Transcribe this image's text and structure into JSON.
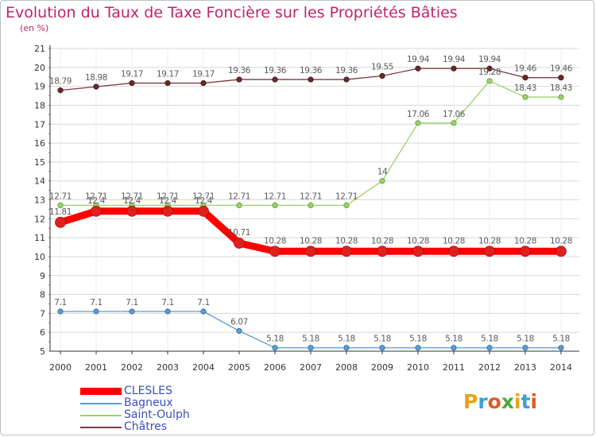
{
  "header": {
    "title": "Evolution du Taux de Taxe Foncière sur les Propriétés Bâties",
    "subtitle": "(en %)"
  },
  "colors": {
    "title": "#c0246a",
    "legend_text": "#3a4fb8",
    "grid": "#d8d8d8",
    "axis_label": "#333333",
    "value_label": "#5a5a5a"
  },
  "logo": {
    "letters": [
      "P",
      "r",
      "o",
      "x",
      "i",
      "t",
      "i"
    ],
    "colors": [
      "#e8a21d",
      "#3d9fd6",
      "#e05a2a",
      "#4aa83c",
      "#e8a21d",
      "#3d9fd6",
      "#e05a2a"
    ]
  },
  "chart_data": {
    "type": "line",
    "title": "Evolution du Taux de Taxe Foncière sur les Propriétés Bâties",
    "ylabel": "(en %)",
    "xlabel": "",
    "ylim": [
      5,
      21
    ],
    "yticks": [
      "5",
      "6",
      "7",
      "8",
      "9",
      "10",
      "11",
      "12",
      "13",
      "14",
      "15",
      "16",
      "17",
      "18",
      "19",
      "20",
      "21"
    ],
    "categories": [
      "2000",
      "2001",
      "2002",
      "2003",
      "2004",
      "2005",
      "2006",
      "2007",
      "2008",
      "2009",
      "2010",
      "2011",
      "2012",
      "2013",
      "2014"
    ],
    "grid": true,
    "legend_position": "bottom-left",
    "series": [
      {
        "name": "CLESLES",
        "color": "#ff0000",
        "values": [
          11.81,
          12.4,
          12.4,
          12.4,
          12.4,
          10.71,
          10.28,
          10.28,
          10.28,
          10.28,
          10.28,
          10.28,
          10.28,
          10.28,
          10.28
        ],
        "labels": [
          "11.81",
          "12.4",
          "12.4",
          "12.4",
          "12.4",
          "10.71",
          "10.28",
          "10.28",
          "10.28",
          "10.28",
          "10.28",
          "10.28",
          "10.28",
          "10.28",
          "10.28"
        ]
      },
      {
        "name": "Bagneux",
        "color": "#5b9bd5",
        "values": [
          7.1,
          7.1,
          7.1,
          7.1,
          7.1,
          6.07,
          5.18,
          5.18,
          5.18,
          5.18,
          5.18,
          5.18,
          5.18,
          5.18,
          5.18
        ],
        "labels": [
          "7.1",
          "7.1",
          "7.1",
          "7.1",
          "7.1",
          "6.07",
          "5.18",
          "5.18",
          "5.18",
          "5.18",
          "5.18",
          "5.18",
          "5.18",
          "5.18",
          "5.18"
        ]
      },
      {
        "name": "Saint-Oulph",
        "color": "#9ad26a",
        "values": [
          12.71,
          12.71,
          12.71,
          12.71,
          12.71,
          12.71,
          12.71,
          12.71,
          12.71,
          14,
          17.06,
          17.06,
          19.28,
          18.43,
          18.43
        ],
        "labels": [
          "12.71",
          "12.71",
          "12.71",
          "12.71",
          "12.71",
          "12.71",
          "12.71",
          "12.71",
          "12.71",
          "14",
          "17.06",
          "17.06",
          "19.28",
          "18.43",
          "18.43"
        ]
      },
      {
        "name": "Châtres",
        "color": "#7a3b3b",
        "values": [
          18.79,
          18.98,
          19.17,
          19.17,
          19.17,
          19.36,
          19.36,
          19.36,
          19.36,
          19.55,
          19.94,
          19.94,
          19.94,
          19.46,
          19.46
        ],
        "labels": [
          "18.79",
          "18.98",
          "19.17",
          "19.17",
          "19.17",
          "19.36",
          "19.36",
          "19.36",
          "19.36",
          "19.55",
          "19.94",
          "19.94",
          "19.94",
          "19.46",
          "19.46"
        ]
      }
    ]
  }
}
